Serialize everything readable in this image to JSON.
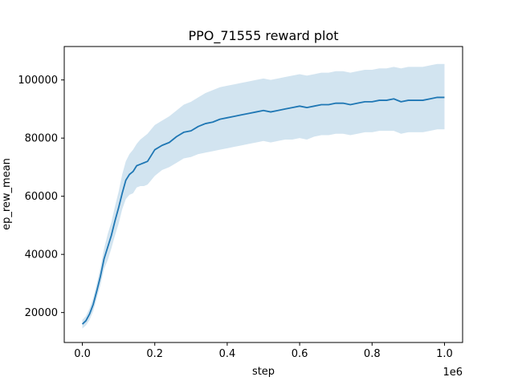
{
  "chart_data": {
    "type": "line",
    "title": "PPO_71555 reward plot",
    "xlabel": "step",
    "ylabel": "ep_rew_mean",
    "x_offset_label": "1e6",
    "x_ticks": [
      0.0,
      0.2,
      0.4,
      0.6,
      0.8,
      1.0
    ],
    "x_tick_labels": [
      "0.0",
      "0.2",
      "0.4",
      "0.6",
      "0.8",
      "1.0"
    ],
    "y_ticks": [
      20000,
      40000,
      60000,
      80000,
      100000
    ],
    "y_tick_labels": [
      "20000",
      "40000",
      "60000",
      "80000",
      "100000"
    ],
    "xlim": [
      -0.05,
      1.05
    ],
    "ylim": [
      9700,
      111500
    ],
    "grid": false,
    "legend": "none",
    "colors": {
      "line": "#1f77b4",
      "band": "#1f77b4",
      "band_opacity": 0.2
    },
    "series": [
      {
        "x": [
          0.0,
          0.01,
          0.02,
          0.03,
          0.04,
          0.05,
          0.06,
          0.07,
          0.08,
          0.09,
          0.1,
          0.11,
          0.12,
          0.13,
          0.14,
          0.15,
          0.16,
          0.17,
          0.18,
          0.19,
          0.2,
          0.22,
          0.24,
          0.26,
          0.28,
          0.3,
          0.32,
          0.34,
          0.36,
          0.38,
          0.4,
          0.42,
          0.44,
          0.46,
          0.48,
          0.5,
          0.52,
          0.54,
          0.56,
          0.58,
          0.6,
          0.62,
          0.64,
          0.66,
          0.68,
          0.7,
          0.72,
          0.74,
          0.76,
          0.78,
          0.8,
          0.82,
          0.84,
          0.86,
          0.88,
          0.9,
          0.92,
          0.94,
          0.96,
          0.98,
          1.0
        ],
        "y": [
          16000,
          17200,
          19500,
          22800,
          27500,
          32500,
          38500,
          42500,
          46500,
          51500,
          56000,
          61000,
          65500,
          67500,
          68500,
          70500,
          71000,
          71500,
          72000,
          74000,
          76000,
          77500,
          78500,
          80500,
          82000,
          82500,
          84000,
          85000,
          85500,
          86500,
          87000,
          87500,
          88000,
          88500,
          89000,
          89500,
          89000,
          89500,
          90000,
          90500,
          91000,
          90500,
          91000,
          91500,
          91500,
          92000,
          92000,
          91500,
          92000,
          92500,
          92500,
          93000,
          93000,
          93500,
          92500,
          93000,
          93000,
          93000,
          93500,
          94000,
          94000
        ],
        "y_upper": [
          17500,
          18800,
          21500,
          25000,
          30000,
          35500,
          42000,
          47000,
          51000,
          56500,
          61500,
          67500,
          72000,
          74500,
          76000,
          78000,
          79500,
          80500,
          81500,
          83000,
          84500,
          86000,
          87500,
          89500,
          91500,
          92500,
          94000,
          95500,
          96500,
          97500,
          98000,
          98500,
          99000,
          99500,
          100000,
          100500,
          100000,
          100500,
          101000,
          101500,
          102000,
          101500,
          102000,
          102500,
          102500,
          103000,
          103000,
          102500,
          103000,
          103500,
          103500,
          104000,
          104000,
          104500,
          104000,
          104500,
          104500,
          104500,
          105000,
          105500,
          105500
        ],
        "y_lower": [
          14500,
          15600,
          17500,
          20500,
          25000,
          29500,
          35000,
          38000,
          42000,
          46500,
          50500,
          55500,
          59000,
          60500,
          61000,
          63000,
          63500,
          63500,
          64000,
          65500,
          67000,
          69000,
          70000,
          71500,
          73000,
          73500,
          74500,
          75000,
          75500,
          76000,
          76500,
          77000,
          77500,
          78000,
          78500,
          79000,
          78500,
          79000,
          79500,
          79500,
          80000,
          79500,
          80500,
          81000,
          81000,
          81500,
          81500,
          81000,
          81500,
          82000,
          82000,
          82500,
          82500,
          82500,
          81500,
          82000,
          82000,
          82000,
          82500,
          83000,
          83000
        ]
      }
    ]
  }
}
